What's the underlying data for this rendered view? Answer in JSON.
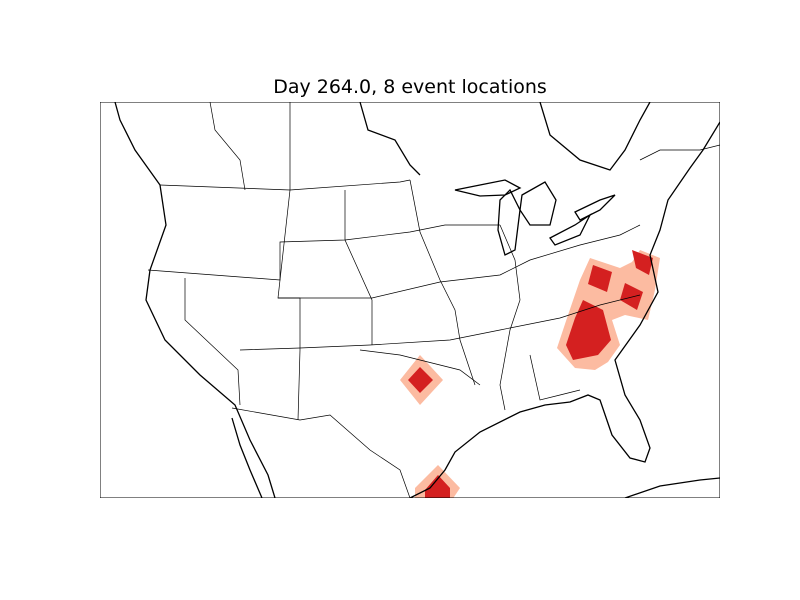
{
  "title": "Day 264.0, 8 event locations",
  "colors": {
    "event_core": "#d42020",
    "event_halo": "#fcbba1",
    "land": "#ffffff",
    "lines": "#000000"
  }
}
